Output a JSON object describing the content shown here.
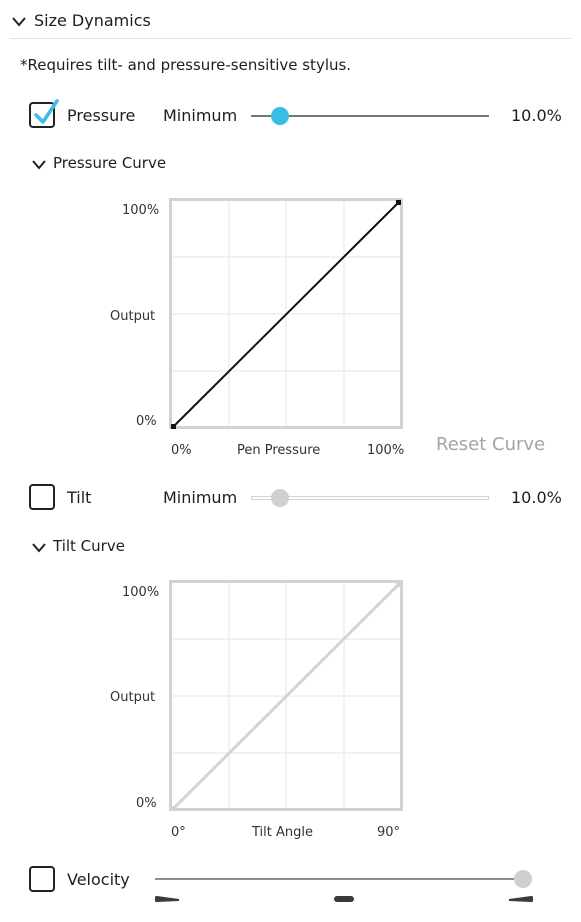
{
  "section": {
    "title": "Size Dynamics",
    "note": "*Requires tilt- and pressure-sensitive stylus."
  },
  "pressure": {
    "label": "Pressure",
    "checked": true,
    "slider_label": "Minimum",
    "value_text": "10.0%",
    "value": 0.1,
    "curve": {
      "title": "Pressure Curve",
      "y_top": "100%",
      "y_mid": "Output",
      "y_bottom": "0%",
      "x_left": "0%",
      "x_mid": "Pen Pressure",
      "x_right": "100%",
      "reset_label": "Reset Curve"
    }
  },
  "tilt": {
    "label": "Tilt",
    "checked": false,
    "slider_label": "Minimum",
    "value_text": "10.0%",
    "value": 0.1,
    "curve": {
      "title": "Tilt Curve",
      "y_top": "100%",
      "y_mid": "Output",
      "y_bottom": "0%",
      "x_left": "0°",
      "x_mid": "Tilt Angle",
      "x_right": "90°"
    }
  },
  "velocity": {
    "label": "Velocity",
    "checked": false,
    "value": 1.0
  },
  "colors": {
    "accent": "#3bbde4",
    "text": "#1e1e1e",
    "disabled": "#cfcfcf",
    "grid": "#e6e6e6"
  },
  "icons": {
    "section_toggle": "chevron-down-icon",
    "checkbox_checked": "checkmark-icon",
    "velocity_slider_marks": "taper-mark-icon"
  }
}
